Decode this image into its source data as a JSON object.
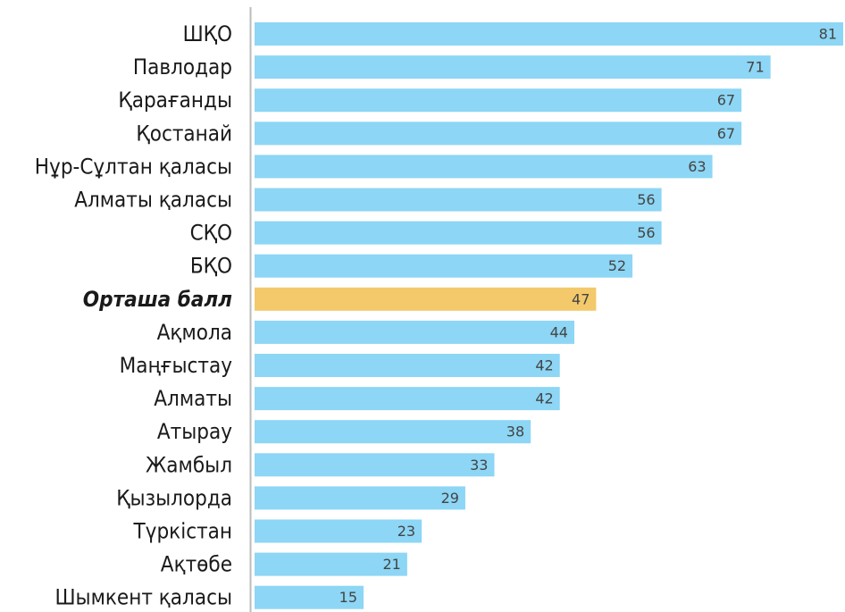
{
  "chart_data": {
    "type": "bar",
    "orientation": "horizontal",
    "categories": [
      "ШҚО",
      "Павлодар",
      "Қарағанды",
      "Қостанай",
      "Нұр-Сұлтан қаласы",
      "Алматы қаласы",
      "СҚО",
      "БҚО",
      "Орташа балл",
      "Ақмола",
      "Маңғыстау",
      "Алматы",
      "Атырау",
      "Жамбыл",
      "Қызылорда",
      "Түркістан",
      "Ақтөбе",
      "Шымкент қаласы"
    ],
    "values": [
      81,
      71,
      67,
      67,
      63,
      56,
      56,
      52,
      47,
      44,
      42,
      42,
      38,
      33,
      29,
      23,
      21,
      15
    ],
    "colors": [
      "#8dd6f5",
      "#8dd6f5",
      "#8dd6f5",
      "#8dd6f5",
      "#8dd6f5",
      "#8dd6f5",
      "#8dd6f5",
      "#8dd6f5",
      "#f3c96b",
      "#8dd6f5",
      "#8dd6f5",
      "#8dd6f5",
      "#8dd6f5",
      "#8dd6f5",
      "#8dd6f5",
      "#8dd6f5",
      "#8dd6f5",
      "#8dd6f5"
    ],
    "emphasis": [
      false,
      false,
      false,
      false,
      false,
      false,
      false,
      false,
      true,
      false,
      false,
      false,
      false,
      false,
      false,
      false,
      false,
      false
    ],
    "xlim": [
      0,
      81
    ]
  }
}
